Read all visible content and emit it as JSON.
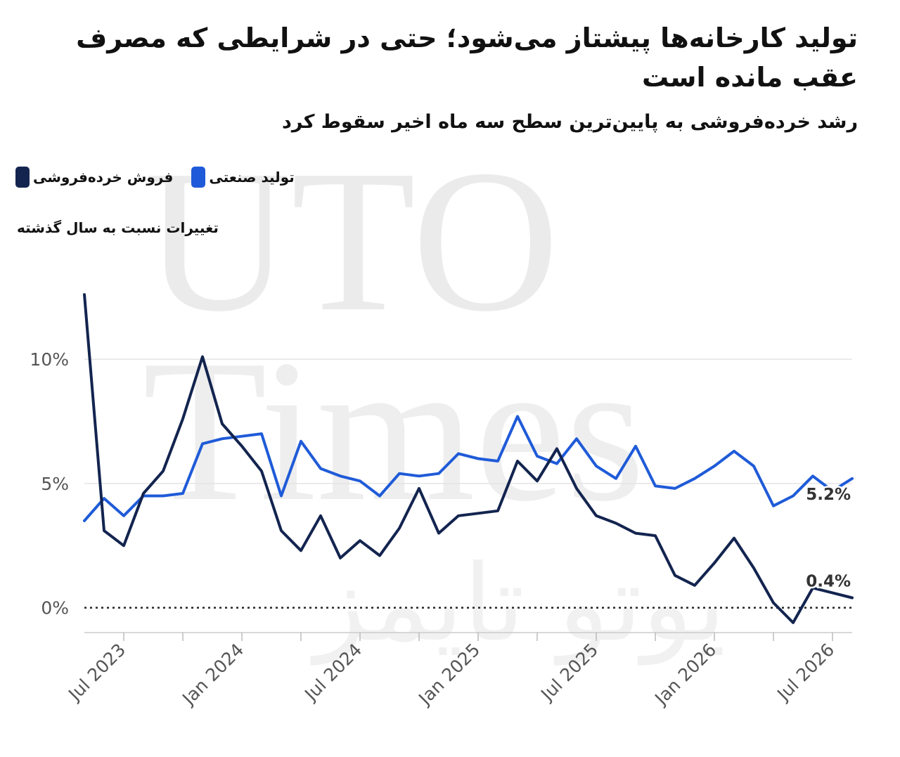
{
  "title": "تولید کارخانه‌ها پیشتاز می‌شود؛ حتی در شرایطی که مصرف عقب مانده است",
  "subtitle": "رشد خرده‌فروشی به پایین‌ترین سطح سه ماه اخیر سقوط کرد",
  "watermark": {
    "line1": "UTO",
    "line2": "Times",
    "line3": "یوتو تایمز"
  },
  "legend": [
    {
      "label": "فروش خرده‌فروشی",
      "color": "#13244f"
    },
    {
      "label": "تولید صنعتی",
      "color": "#1f5bd8"
    }
  ],
  "unit_label": "تغییرات نسبت به سال گذشته",
  "chart_data": {
    "type": "line",
    "x": [
      "2023-05",
      "2023-06",
      "2023-07",
      "2023-08",
      "2023-09",
      "2023-10",
      "2023-11",
      "2023-12",
      "2024-01",
      "2024-02",
      "2024-03",
      "2024-04",
      "2024-05",
      "2024-06",
      "2024-07",
      "2024-08",
      "2024-09",
      "2024-10",
      "2024-11",
      "2024-12",
      "2025-01",
      "2025-02",
      "2025-03",
      "2025-04",
      "2025-05",
      "2025-06",
      "2025-07",
      "2025-08",
      "2025-09",
      "2025-10",
      "2025-11",
      "2025-12",
      "2026-01",
      "2026-02",
      "2026-03",
      "2026-04",
      "2026-05",
      "2026-06",
      "2026-07",
      "2026-08"
    ],
    "series": [
      {
        "name": "فروش خرده‌فروشی",
        "color": "#13244f",
        "values": [
          12.6,
          3.1,
          2.5,
          4.6,
          5.5,
          7.6,
          10.1,
          7.4,
          6.5,
          5.5,
          3.1,
          2.3,
          3.7,
          2.0,
          2.7,
          2.1,
          3.2,
          4.8,
          3.0,
          3.7,
          3.8,
          3.9,
          5.9,
          5.1,
          6.4,
          4.8,
          3.7,
          3.4,
          3.0,
          2.9,
          1.3,
          0.9,
          1.8,
          2.8,
          1.6,
          0.2,
          -0.6,
          0.8,
          0.6,
          0.4
        ],
        "end_label": "0.4%"
      },
      {
        "name": "تولید صنعتی",
        "color": "#1f5bd8",
        "values": [
          3.5,
          4.4,
          3.7,
          4.5,
          4.5,
          4.6,
          6.6,
          6.8,
          6.9,
          7.0,
          4.5,
          6.7,
          5.6,
          5.3,
          5.1,
          4.5,
          5.4,
          5.3,
          5.4,
          6.2,
          6.0,
          5.9,
          7.7,
          6.1,
          5.8,
          6.8,
          5.7,
          5.2,
          6.5,
          4.9,
          4.8,
          5.2,
          5.7,
          6.3,
          5.7,
          4.1,
          4.5,
          5.3,
          4.7,
          5.2
        ],
        "end_label": "5.2%"
      }
    ],
    "x_ticks": [
      "Jul 2023",
      "Jan 2024",
      "Jul 2024",
      "Jan 2025",
      "Jul 2025",
      "Jan 2026",
      "Jul 2026"
    ],
    "y_ticks": [
      "0%",
      "5%",
      "10%"
    ],
    "ylim": [
      -1,
      13
    ],
    "grid": true,
    "zero_line": "dotted",
    "legend_position": "top-left"
  }
}
